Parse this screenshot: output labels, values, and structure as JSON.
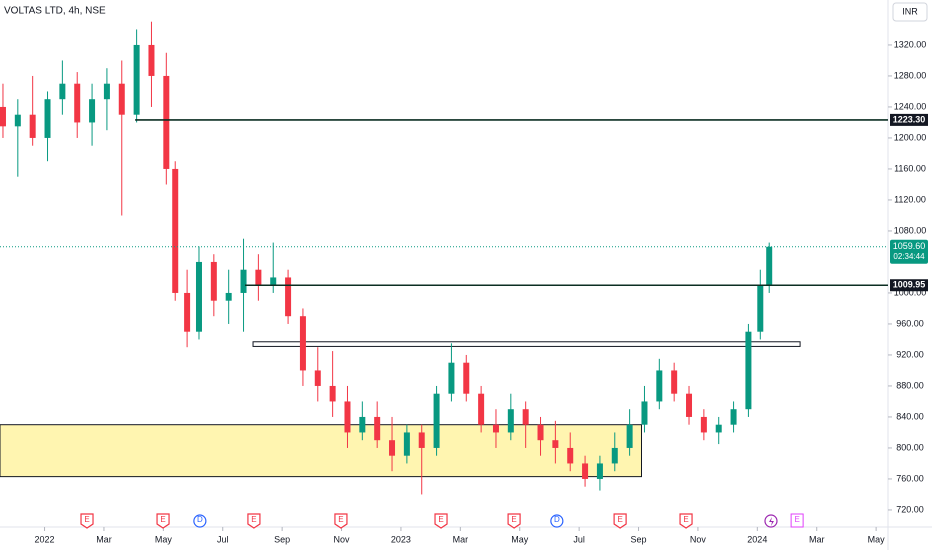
{
  "chart_data": {
    "type": "candlestick",
    "title": "VOLTAS LTD, 4h, NSE",
    "currency": "INR",
    "x": [
      -1.4,
      -0.9,
      -0.4,
      0.1,
      0.6,
      1.1,
      1.6,
      2.1,
      2.6,
      3.1,
      3.6,
      4.1,
      4.4,
      4.8,
      5.2,
      5.7,
      6.2,
      6.7,
      7.2,
      7.7,
      8.2,
      8.7,
      9.2,
      9.7,
      10.2,
      10.7,
      11.2,
      11.7,
      12.2,
      12.7,
      13.2,
      13.7,
      14.2,
      14.7,
      15.2,
      15.7,
      16.2,
      16.7,
      17.2,
      17.7,
      18.2,
      18.7,
      19.2,
      19.7,
      20.2,
      20.7,
      21.2,
      21.7,
      22.2,
      22.7,
      23.2,
      23.7,
      24.1,
      24.4
    ],
    "open": [
      1240,
      1215,
      1230,
      1200,
      1250,
      1270,
      1220,
      1250,
      1270,
      1230,
      1320,
      1280,
      1160,
      1000,
      950,
      1040,
      990,
      1000,
      1030,
      1010,
      1020,
      970,
      900,
      880,
      860,
      820,
      840,
      810,
      790,
      820,
      800,
      870,
      910,
      870,
      830,
      820,
      850,
      830,
      810,
      800,
      780,
      760,
      780,
      800,
      830,
      860,
      900,
      870,
      840,
      820,
      830,
      850,
      950,
      1010
    ],
    "high": [
      1270,
      1250,
      1280,
      1260,
      1300,
      1285,
      1270,
      1290,
      1300,
      1340,
      1350,
      1310,
      1170,
      1030,
      1060,
      1050,
      1030,
      1070,
      1050,
      1065,
      1030,
      980,
      930,
      925,
      880,
      860,
      860,
      840,
      830,
      830,
      880,
      935,
      920,
      880,
      850,
      870,
      860,
      840,
      835,
      820,
      790,
      790,
      820,
      850,
      880,
      915,
      910,
      880,
      850,
      840,
      860,
      960,
      1030,
      1065
    ],
    "low": [
      1200,
      1150,
      1190,
      1170,
      1230,
      1200,
      1190,
      1210,
      1100,
      1220,
      1240,
      1140,
      990,
      930,
      940,
      970,
      960,
      950,
      990,
      1000,
      960,
      880,
      860,
      840,
      800,
      810,
      800,
      770,
      780,
      740,
      790,
      860,
      860,
      820,
      800,
      810,
      800,
      790,
      780,
      770,
      750,
      745,
      770,
      790,
      820,
      850,
      860,
      830,
      810,
      805,
      820,
      840,
      940,
      1000
    ],
    "close": [
      1215,
      1230,
      1200,
      1250,
      1270,
      1220,
      1250,
      1270,
      1230,
      1320,
      1280,
      1160,
      1000,
      950,
      1040,
      990,
      1000,
      1030,
      1010,
      1020,
      970,
      900,
      880,
      860,
      820,
      840,
      810,
      790,
      820,
      800,
      870,
      910,
      870,
      830,
      820,
      850,
      830,
      810,
      800,
      780,
      760,
      780,
      800,
      830,
      860,
      900,
      870,
      840,
      820,
      830,
      850,
      950,
      1010,
      1059.6
    ],
    "up_color": "#089981",
    "down_color": "#f23645",
    "xlim": [
      -1.5,
      28.4
    ],
    "ylim": [
      698,
      1378
    ],
    "xticks": [
      {
        "value": 0,
        "label": "2022"
      },
      {
        "value": 2,
        "label": "Mar"
      },
      {
        "value": 4,
        "label": "May"
      },
      {
        "value": 6,
        "label": "Jul"
      },
      {
        "value": 8,
        "label": "Sep"
      },
      {
        "value": 10,
        "label": "Nov"
      },
      {
        "value": 12,
        "label": "2023"
      },
      {
        "value": 14,
        "label": "Mar"
      },
      {
        "value": 16,
        "label": "May"
      },
      {
        "value": 18,
        "label": "Jul"
      },
      {
        "value": 20,
        "label": "Sep"
      },
      {
        "value": 22,
        "label": "Nov"
      },
      {
        "value": 24,
        "label": "2024"
      },
      {
        "value": 26,
        "label": "Mar"
      },
      {
        "value": 28,
        "label": "May"
      }
    ],
    "yticks": [
      {
        "value": 720,
        "label": "720.00"
      },
      {
        "value": 760,
        "label": "760.00"
      },
      {
        "value": 800,
        "label": "800.00"
      },
      {
        "value": 840,
        "label": "840.00"
      },
      {
        "value": 880,
        "label": "880.00"
      },
      {
        "value": 920,
        "label": "920.00"
      },
      {
        "value": 960,
        "label": "960.00"
      },
      {
        "value": 1000,
        "label": "1000.00"
      },
      {
        "value": 1080,
        "label": "1080.00"
      },
      {
        "value": 1120,
        "label": "1120.00"
      },
      {
        "value": 1160,
        "label": "1160.00"
      },
      {
        "value": 1200,
        "label": "1200.00"
      },
      {
        "value": 1240,
        "label": "1240.00"
      },
      {
        "value": 1280,
        "label": "1280.00"
      },
      {
        "value": 1320,
        "label": "1320.00"
      }
    ],
    "levels": [
      {
        "value": 1223.3,
        "label": "1223.30",
        "start": 3.05
      },
      {
        "value": 1009.95,
        "label": "1009.95",
        "start": 6.75
      }
    ],
    "zones": [
      {
        "top": 830,
        "bottom": 763,
        "start": -1.5,
        "end": 20.1,
        "color": "#fff5b0"
      },
      {
        "top": 937,
        "bottom": 931,
        "start": 7.02,
        "end": 25.44,
        "color": "#ffffff"
      }
    ],
    "last_price": 1059.6,
    "last_price_label": "1059.60",
    "countdown": "02:34:44",
    "events": [
      {
        "x": 1.43,
        "label": "E"
      },
      {
        "x": 3.99,
        "label": "E"
      },
      {
        "x": 5.23,
        "label": "D"
      },
      {
        "x": 7.05,
        "label": "E"
      },
      {
        "x": 9.98,
        "label": "E"
      },
      {
        "x": 13.35,
        "label": "E"
      },
      {
        "x": 15.81,
        "label": "E"
      },
      {
        "x": 17.25,
        "label": "D"
      },
      {
        "x": 19.38,
        "label": "E"
      },
      {
        "x": 21.6,
        "label": "E"
      },
      {
        "x": 25.34,
        "label": "E"
      }
    ],
    "splits": [
      24.46
    ]
  }
}
